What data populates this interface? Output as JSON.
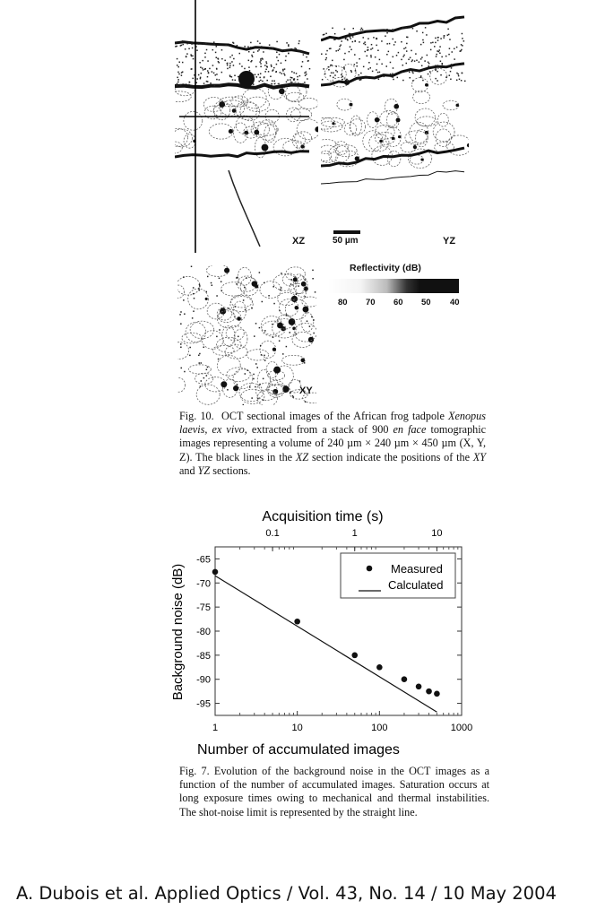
{
  "figure10": {
    "panel_labels": {
      "xz": "XZ",
      "yz": "YZ",
      "xy": "XY"
    },
    "scale_bar": "50 µm",
    "colorbar": {
      "title": "Reflectivity (dB)",
      "ticks": [
        "80",
        "70",
        "60",
        "50",
        "40"
      ]
    },
    "caption": {
      "prefix": "Fig. 10.",
      "t1": "OCT sectional images of the African frog tadpole",
      "species": "Xenopus laevis, ex vivo,",
      "t2": "extracted from a stack of 900",
      "enface": "en face",
      "t3": "tomographic images representing a volume of 240 µm × 240 µm × 450 µm (X, Y, Z).",
      "t4": "The black lines in the",
      "xz": "XZ",
      "t5": "section indicate the positions of the",
      "xy": "XY",
      "and": "and",
      "yz": "YZ",
      "t6": "sections."
    }
  },
  "chart_data": {
    "type": "scatter",
    "title": "",
    "xlabel": "Number of accumulated images",
    "ylabel": "Background noise (dB)",
    "x2label": "Acquisition time (s)",
    "xscale": "log",
    "xlim": [
      1,
      1000
    ],
    "ylim": [
      -97.5,
      -62.5
    ],
    "xticks": [
      "1",
      "10",
      "100",
      "1000"
    ],
    "yticks": [
      "-65",
      "-70",
      "-75",
      "-80",
      "-85",
      "-90",
      "-95"
    ],
    "x2ticks": [
      "0.1",
      "1",
      "10"
    ],
    "x2_per_image_s": 0.02,
    "legend": {
      "position": "top-right",
      "measured": "Measured",
      "calculated": "Calculated"
    },
    "series": [
      {
        "name": "Measured",
        "kind": "points",
        "x": [
          1,
          10,
          50,
          100,
          200,
          300,
          400,
          500
        ],
        "y": [
          -67.7,
          -78,
          -85,
          -87.5,
          -90,
          -91.5,
          -92.5,
          -93
        ]
      },
      {
        "name": "Calculated",
        "kind": "line",
        "x": [
          1,
          500
        ],
        "y": [
          -68.5,
          -96.8
        ]
      }
    ]
  },
  "figure7": {
    "caption": "Fig. 7.   Evolution of the background noise in the OCT images as a function of the number of accumulated images.  Saturation occurs at long exposure times owing to mechanical and thermal instabilities.  The shot-noise limit is represented by the straight line."
  },
  "citation": "A. Dubois et al. Applied Optics / Vol. 43, No. 14 / 10 May 2004"
}
